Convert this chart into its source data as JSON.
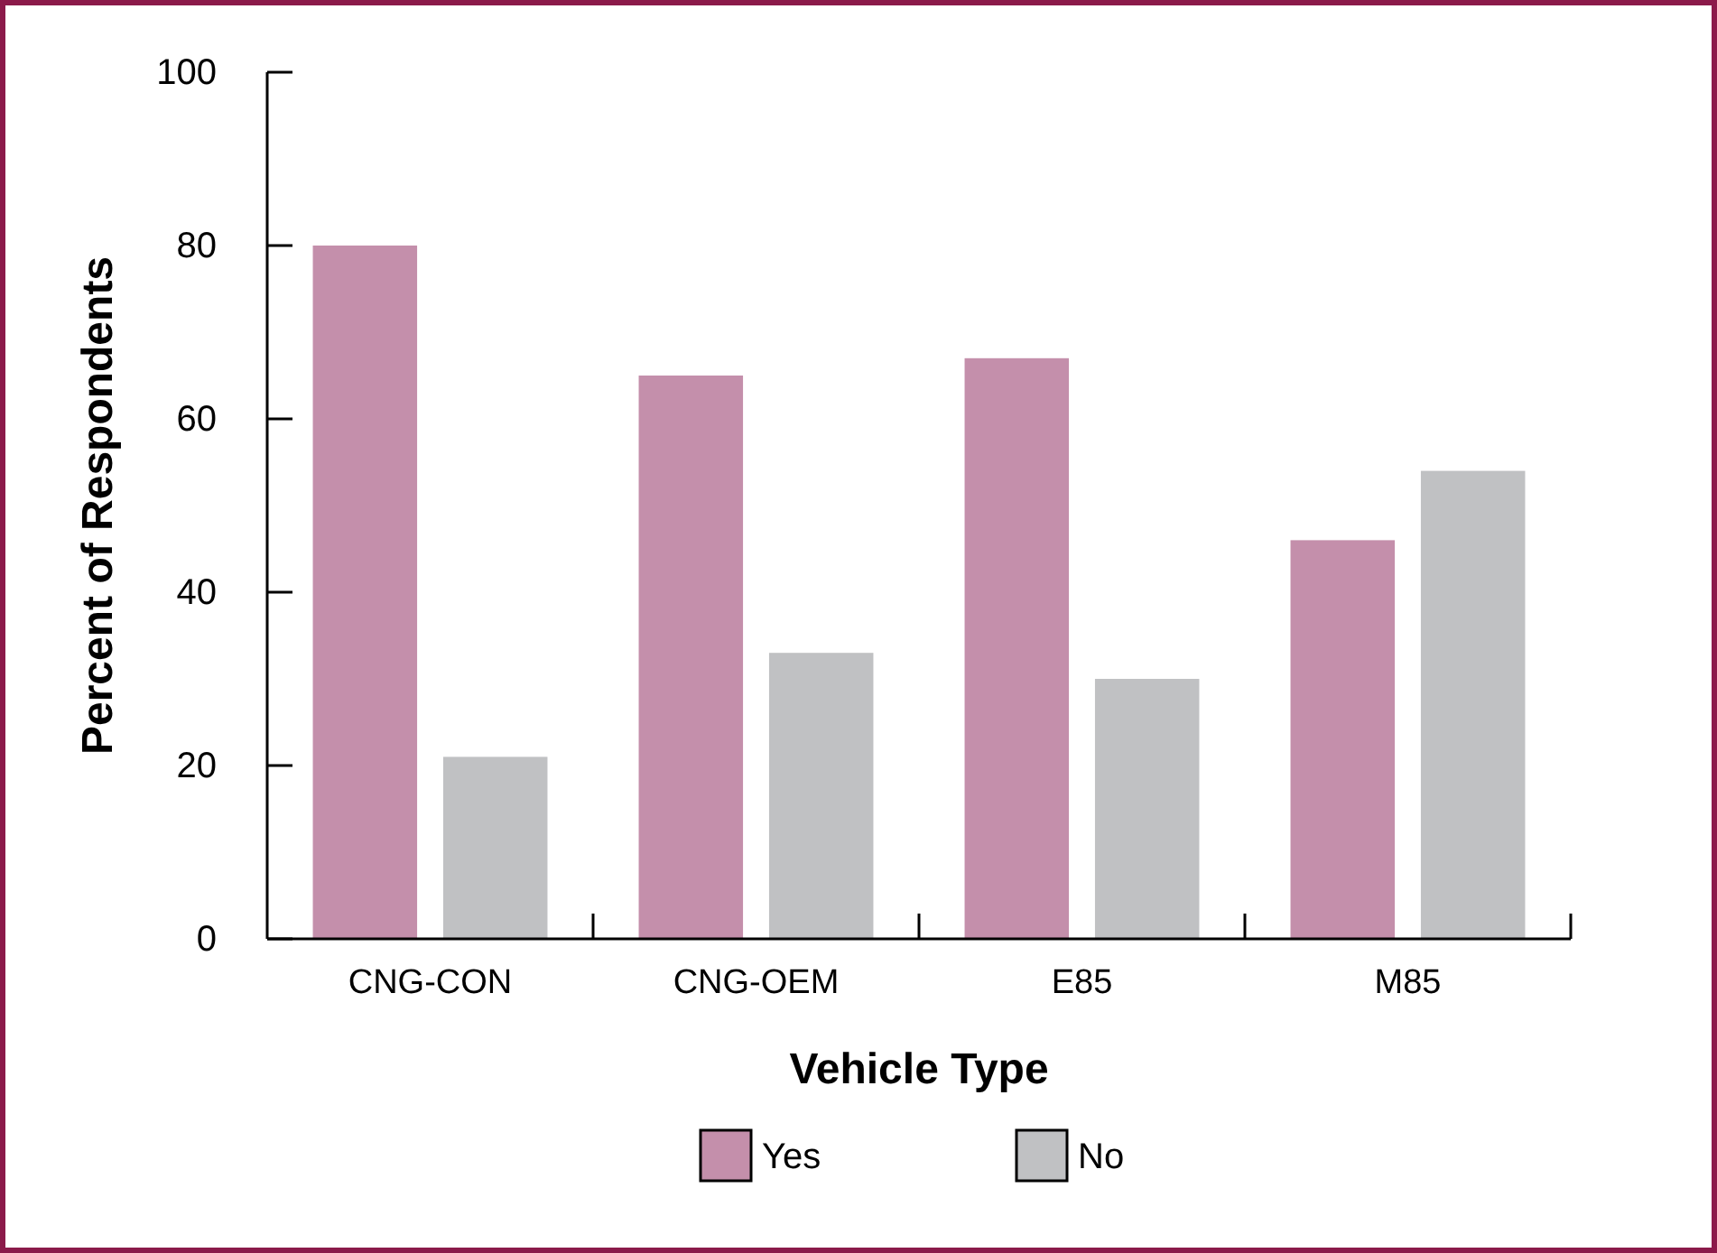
{
  "chart_data": {
    "type": "bar",
    "xlabel": "Vehicle Type",
    "ylabel": "Percent of Respondents",
    "categories": [
      "CNG-CON",
      "CNG-OEM",
      "E85",
      "M85"
    ],
    "series": [
      {
        "name": "Yes",
        "color": "#c48fab",
        "values": [
          80,
          65,
          67,
          46
        ]
      },
      {
        "name": "No",
        "color": "#c0c1c3",
        "values": [
          21,
          33,
          30,
          54
        ]
      }
    ],
    "ylim": [
      0,
      100
    ],
    "yticks": [
      0,
      20,
      40,
      60,
      80,
      100
    ],
    "grid": false,
    "legend": "bottom"
  }
}
